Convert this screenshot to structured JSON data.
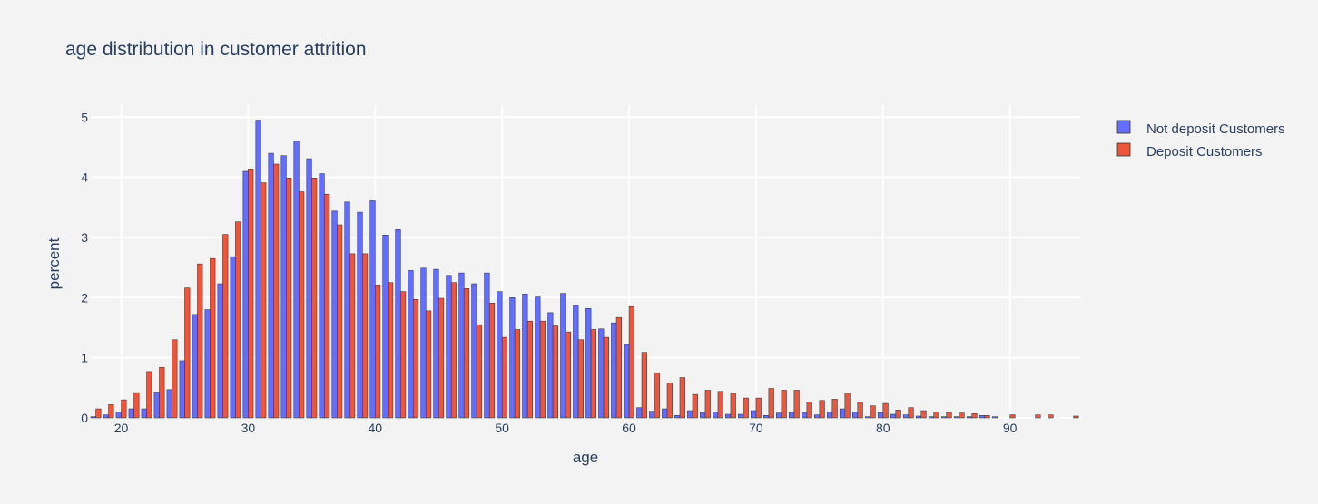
{
  "chart_data": {
    "type": "bar",
    "title": "age distribution in customer attrition",
    "xlabel": "age",
    "ylabel": "percent",
    "xlim": [
      17.6,
      95.6
    ],
    "ylim": [
      0,
      5.2
    ],
    "xticks": [
      20,
      30,
      40,
      50,
      60,
      70,
      80,
      90
    ],
    "yticks": [
      0,
      1,
      2,
      3,
      4,
      5
    ],
    "grid": true,
    "legend_position": "top-right",
    "barmode": "group",
    "background": "#f3f3f3",
    "series": [
      {
        "name": "Not deposit Customers",
        "color": "#636efa",
        "points": [
          [
            18,
            0.02
          ],
          [
            19,
            0.05
          ],
          [
            20,
            0.1
          ],
          [
            21,
            0.15
          ],
          [
            22,
            0.15
          ],
          [
            23,
            0.43
          ],
          [
            24,
            0.47
          ],
          [
            25,
            0.95
          ],
          [
            26,
            1.72
          ],
          [
            27,
            1.8
          ],
          [
            28,
            2.23
          ],
          [
            29,
            2.68
          ],
          [
            30,
            4.1
          ],
          [
            31,
            4.95
          ],
          [
            32,
            4.4
          ],
          [
            33,
            4.36
          ],
          [
            34,
            4.6
          ],
          [
            35,
            4.31
          ],
          [
            36,
            4.06
          ],
          [
            37,
            3.44
          ],
          [
            38,
            3.59
          ],
          [
            39,
            3.42
          ],
          [
            40,
            3.61
          ],
          [
            41,
            3.04
          ],
          [
            42,
            3.13
          ],
          [
            43,
            2.45
          ],
          [
            44,
            2.49
          ],
          [
            45,
            2.47
          ],
          [
            46,
            2.37
          ],
          [
            47,
            2.41
          ],
          [
            48,
            2.23
          ],
          [
            49,
            2.41
          ],
          [
            50,
            2.1
          ],
          [
            51,
            2.0
          ],
          [
            52,
            2.06
          ],
          [
            53,
            2.01
          ],
          [
            54,
            1.75
          ],
          [
            55,
            2.07
          ],
          [
            56,
            1.87
          ],
          [
            57,
            1.82
          ],
          [
            58,
            1.48
          ],
          [
            59,
            1.58
          ],
          [
            60,
            1.22
          ],
          [
            61,
            0.17
          ],
          [
            62,
            0.11
          ],
          [
            63,
            0.15
          ],
          [
            64,
            0.04
          ],
          [
            65,
            0.12
          ],
          [
            66,
            0.09
          ],
          [
            67,
            0.1
          ],
          [
            68,
            0.06
          ],
          [
            69,
            0.06
          ],
          [
            70,
            0.12
          ],
          [
            71,
            0.04
          ],
          [
            72,
            0.08
          ],
          [
            73,
            0.09
          ],
          [
            74,
            0.09
          ],
          [
            75,
            0.05
          ],
          [
            76,
            0.1
          ],
          [
            77,
            0.15
          ],
          [
            78,
            0.1
          ],
          [
            79,
            0.02
          ],
          [
            80,
            0.09
          ],
          [
            81,
            0.06
          ],
          [
            82,
            0.05
          ],
          [
            83,
            0.03
          ],
          [
            84,
            0.02
          ],
          [
            85,
            0.02
          ],
          [
            86,
            0.02
          ],
          [
            87,
            0.02
          ],
          [
            88,
            0.04
          ],
          [
            89,
            0.02
          ]
        ]
      },
      {
        "name": "Deposit Customers",
        "color": "#ef553b",
        "points": [
          [
            18,
            0.15
          ],
          [
            19,
            0.22
          ],
          [
            20,
            0.3
          ],
          [
            21,
            0.42
          ],
          [
            22,
            0.77
          ],
          [
            23,
            0.84
          ],
          [
            24,
            1.3
          ],
          [
            25,
            2.16
          ],
          [
            26,
            2.56
          ],
          [
            27,
            2.65
          ],
          [
            28,
            3.05
          ],
          [
            29,
            3.26
          ],
          [
            30,
            4.14
          ],
          [
            31,
            3.91
          ],
          [
            32,
            4.22
          ],
          [
            33,
            3.99
          ],
          [
            34,
            3.76
          ],
          [
            35,
            3.99
          ],
          [
            36,
            3.72
          ],
          [
            37,
            3.21
          ],
          [
            38,
            2.73
          ],
          [
            39,
            2.73
          ],
          [
            40,
            2.21
          ],
          [
            41,
            2.25
          ],
          [
            42,
            2.1
          ],
          [
            43,
            1.97
          ],
          [
            44,
            1.78
          ],
          [
            45,
            1.99
          ],
          [
            46,
            2.25
          ],
          [
            47,
            2.15
          ],
          [
            48,
            1.55
          ],
          [
            49,
            1.91
          ],
          [
            50,
            1.34
          ],
          [
            51,
            1.47
          ],
          [
            52,
            1.61
          ],
          [
            53,
            1.61
          ],
          [
            54,
            1.53
          ],
          [
            55,
            1.43
          ],
          [
            56,
            1.3
          ],
          [
            57,
            1.47
          ],
          [
            58,
            1.34
          ],
          [
            59,
            1.67
          ],
          [
            60,
            1.85
          ],
          [
            61,
            1.09
          ],
          [
            62,
            0.75
          ],
          [
            63,
            0.58
          ],
          [
            64,
            0.67
          ],
          [
            65,
            0.39
          ],
          [
            66,
            0.46
          ],
          [
            67,
            0.44
          ],
          [
            68,
            0.41
          ],
          [
            69,
            0.33
          ],
          [
            70,
            0.33
          ],
          [
            71,
            0.49
          ],
          [
            72,
            0.46
          ],
          [
            73,
            0.46
          ],
          [
            74,
            0.26
          ],
          [
            75,
            0.29
          ],
          [
            76,
            0.31
          ],
          [
            77,
            0.41
          ],
          [
            78,
            0.26
          ],
          [
            79,
            0.2
          ],
          [
            80,
            0.24
          ],
          [
            81,
            0.13
          ],
          [
            82,
            0.17
          ],
          [
            83,
            0.12
          ],
          [
            84,
            0.1
          ],
          [
            85,
            0.09
          ],
          [
            86,
            0.08
          ],
          [
            87,
            0.07
          ],
          [
            88,
            0.04
          ],
          [
            90,
            0.05
          ],
          [
            92,
            0.05
          ],
          [
            93,
            0.05
          ],
          [
            95,
            0.03
          ]
        ]
      }
    ]
  }
}
